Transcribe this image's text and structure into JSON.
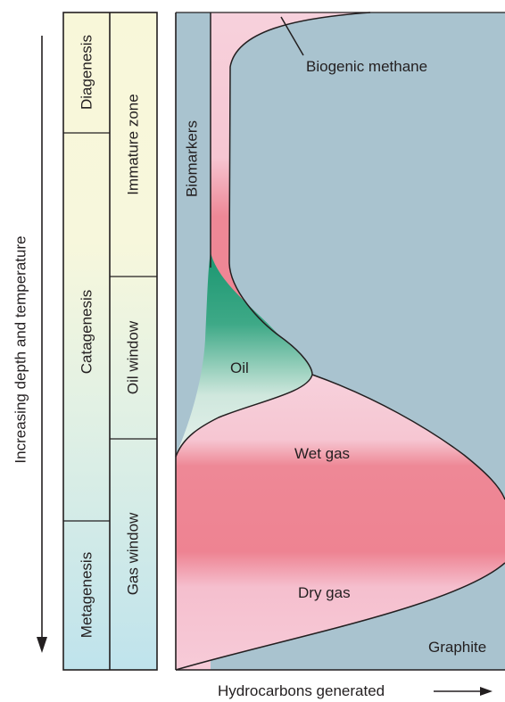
{
  "axis": {
    "y_label": "Increasing depth and temperature",
    "x_label": "Hydrocarbons generated"
  },
  "stages": [
    {
      "label": "Diagenesis"
    },
    {
      "label": "Catagenesis"
    },
    {
      "label": "Metagenesis"
    }
  ],
  "zones": [
    {
      "label": "Immature zone"
    },
    {
      "label": "Oil window"
    },
    {
      "label": "Gas window"
    }
  ],
  "regions": {
    "biomarkers": "Biomarkers",
    "biogenic_methane": "Biogenic methane",
    "oil": "Oil",
    "wet_gas": "Wet gas",
    "dry_gas": "Dry gas",
    "graphite": "Graphite"
  },
  "colors": {
    "biomarkers": "#a9c3cf",
    "oil_dark": "#1f9a6e",
    "oil_light": "#d6ebe1",
    "wet_gas": "#ee8392",
    "dry_gas": "#f6c4d3",
    "stage_yellow": "#f8f7d9",
    "stage_blue": "#bfe3ec",
    "outline": "#231f20"
  }
}
